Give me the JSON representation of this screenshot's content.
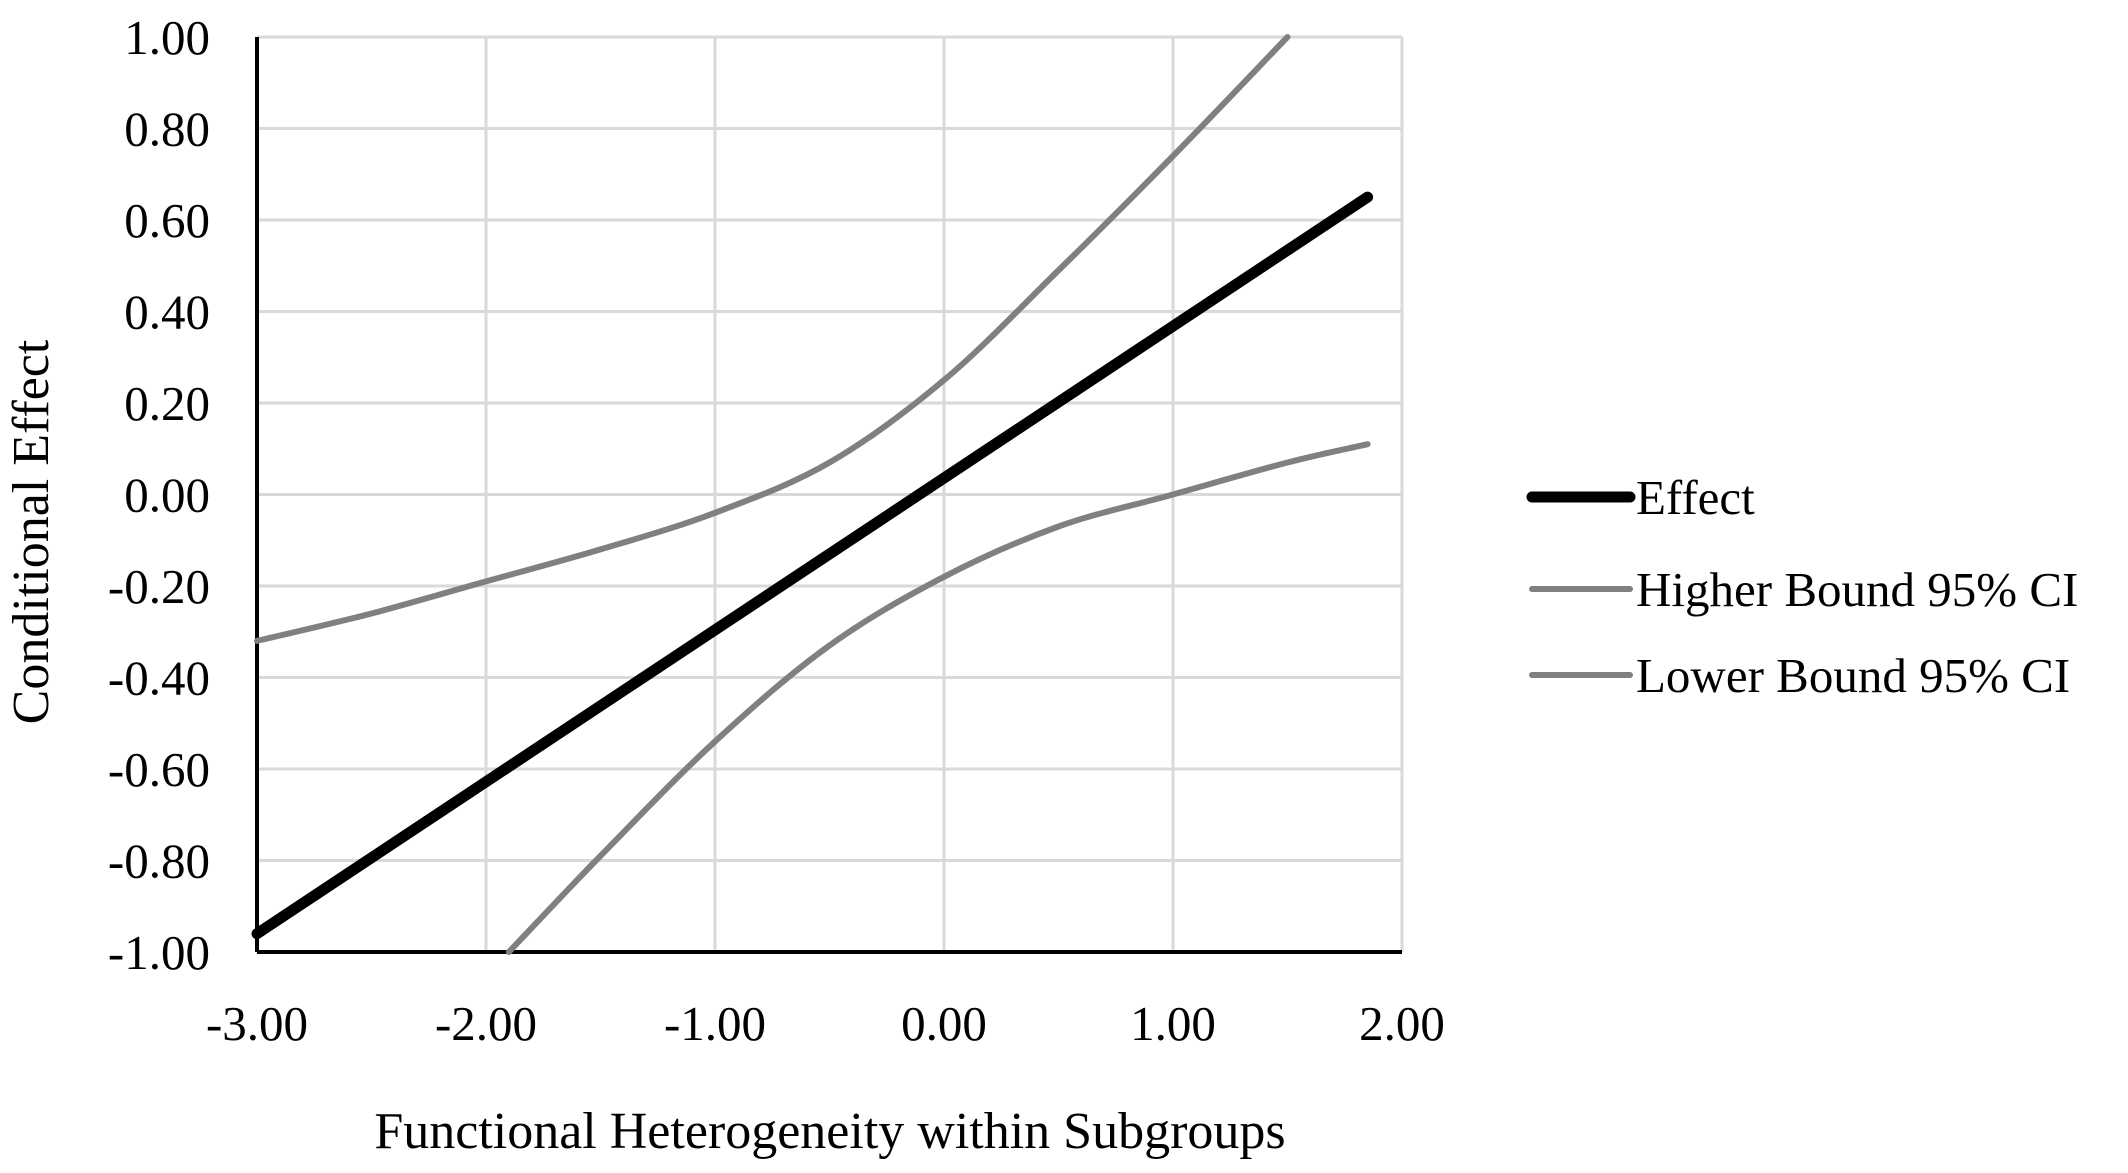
{
  "chart_data": {
    "type": "line",
    "xlabel": "Functional Heterogeneity within Subgroups",
    "ylabel": "Conditional Effect",
    "xlim": [
      -3.0,
      2.0
    ],
    "ylim": [
      -1.0,
      1.0
    ],
    "x_ticks": [
      "-3.00",
      "-2.00",
      "-1.00",
      "0.00",
      "1.00",
      "2.00"
    ],
    "y_ticks": [
      "1.00",
      "0.80",
      "0.60",
      "0.40",
      "0.20",
      "0.00",
      "-0.20",
      "-0.40",
      "-0.60",
      "-0.80",
      "-1.00"
    ],
    "grid": true,
    "legend_position": "right",
    "series": [
      {
        "name": "Effect",
        "color": "#000000",
        "x": [
          -3.0,
          1.85
        ],
        "y": [
          -0.96,
          0.65
        ]
      },
      {
        "name": "Higher Bound 95% CI",
        "color": "#808080",
        "x": [
          -3.0,
          -2.5,
          -2.0,
          -1.5,
          -1.0,
          -0.5,
          0.0,
          0.5,
          1.0,
          1.5
        ],
        "y": [
          -0.32,
          -0.26,
          -0.19,
          -0.12,
          -0.04,
          0.07,
          0.25,
          0.49,
          0.74,
          1.0
        ]
      },
      {
        "name": "Lower Bound 95% CI",
        "color": "#808080",
        "x": [
          -1.9,
          -1.5,
          -1.0,
          -0.5,
          0.0,
          0.5,
          1.0,
          1.5,
          1.85
        ],
        "y": [
          -1.0,
          -0.79,
          -0.54,
          -0.33,
          -0.18,
          -0.07,
          0.0,
          0.07,
          0.11
        ]
      }
    ]
  }
}
